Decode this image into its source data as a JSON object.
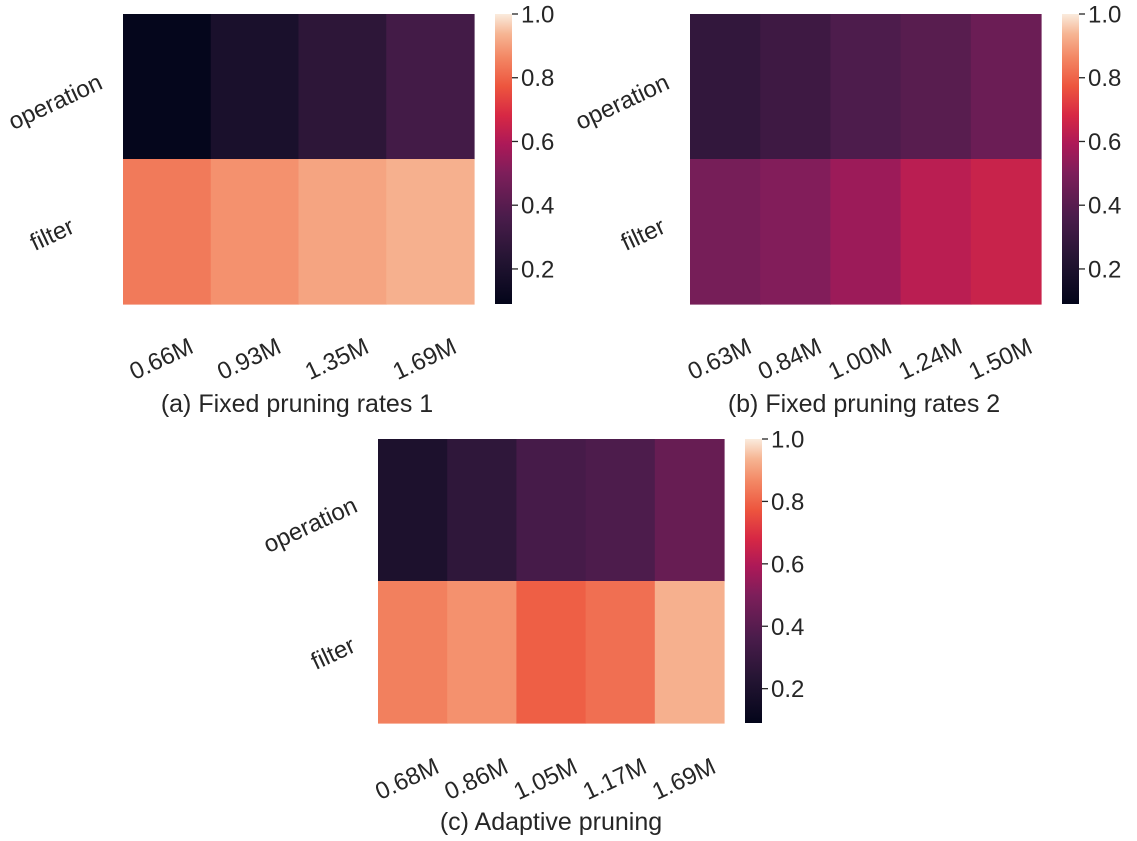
{
  "chart_data": [
    {
      "type": "heatmap",
      "caption": "(a) Fixed pruning rates 1",
      "rows": [
        "operation",
        "filter"
      ],
      "columns": [
        "0.66M",
        "0.93M",
        "1.35M",
        "1.69M"
      ],
      "values": [
        [
          0.1,
          0.19,
          0.26,
          0.34
        ],
        [
          0.84,
          0.88,
          0.91,
          0.93
        ]
      ],
      "colorbar": {
        "min": 0.09,
        "max": 1.0,
        "ticks": [
          "0.2",
          "0.4",
          "0.6",
          "0.8",
          "1.0"
        ],
        "tick_values": [
          0.2,
          0.4,
          0.6,
          0.8,
          1.0
        ]
      },
      "colormap": "rocket"
    },
    {
      "type": "heatmap",
      "caption": "(b) Fixed pruning rates 2",
      "rows": [
        "operation",
        "filter"
      ],
      "columns": [
        "0.63M",
        "0.84M",
        "1.00M",
        "1.24M",
        "1.50M"
      ],
      "values": [
        [
          0.28,
          0.32,
          0.37,
          0.4,
          0.45
        ],
        [
          0.48,
          0.51,
          0.56,
          0.62,
          0.65
        ]
      ],
      "colorbar": {
        "min": 0.09,
        "max": 1.0,
        "ticks": [
          "0.2",
          "0.4",
          "0.6",
          "0.8",
          "1.0"
        ],
        "tick_values": [
          0.2,
          0.4,
          0.6,
          0.8,
          1.0
        ]
      },
      "colormap": "rocket"
    },
    {
      "type": "heatmap",
      "caption": "(c) Adaptive pruning",
      "rows": [
        "operation",
        "filter"
      ],
      "columns": [
        "0.68M",
        "0.86M",
        "1.05M",
        "1.17M",
        "1.69M"
      ],
      "values": [
        [
          0.2,
          0.27,
          0.35,
          0.37,
          0.44
        ],
        [
          0.85,
          0.88,
          0.79,
          0.82,
          0.93
        ]
      ],
      "colorbar": {
        "min": 0.09,
        "max": 1.0,
        "ticks": [
          "0.2",
          "0.4",
          "0.6",
          "0.8",
          "1.0"
        ],
        "tick_values": [
          0.2,
          0.4,
          0.6,
          0.8,
          1.0
        ]
      },
      "colormap": "rocket"
    }
  ]
}
